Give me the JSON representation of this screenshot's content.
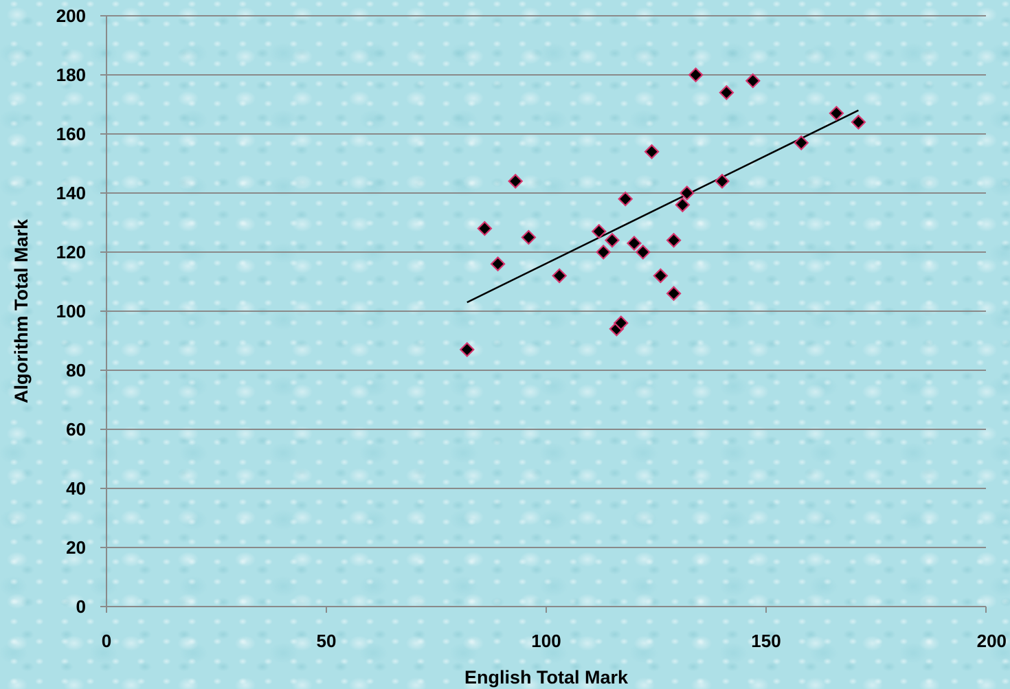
{
  "chart_data": {
    "type": "scatter",
    "title": "",
    "xlabel": "English Total Mark",
    "ylabel": "Algorithm Total Mark",
    "xlim": [
      0,
      200
    ],
    "ylim": [
      0,
      200
    ],
    "x_ticks": [
      "0",
      "50",
      "100",
      "150",
      "200"
    ],
    "y_ticks": [
      "0",
      "20",
      "40",
      "60",
      "80",
      "100",
      "120",
      "140",
      "160",
      "180",
      "200"
    ],
    "grid": "horizontal",
    "legend": "none",
    "colors": {
      "marker_fill": "#000000",
      "marker_edge": "#d6336c",
      "trendline": "#000000",
      "gridline": "#8a8a8a",
      "background": "#aee0e7"
    },
    "series": [
      {
        "marker": "diamond",
        "points": [
          {
            "x": 82,
            "y": 87
          },
          {
            "x": 86,
            "y": 128
          },
          {
            "x": 89,
            "y": 116
          },
          {
            "x": 93,
            "y": 144
          },
          {
            "x": 96,
            "y": 125
          },
          {
            "x": 103,
            "y": 112
          },
          {
            "x": 112,
            "y": 127
          },
          {
            "x": 113,
            "y": 120
          },
          {
            "x": 115,
            "y": 124
          },
          {
            "x": 116,
            "y": 94
          },
          {
            "x": 117,
            "y": 96
          },
          {
            "x": 118,
            "y": 138
          },
          {
            "x": 120,
            "y": 123
          },
          {
            "x": 122,
            "y": 120
          },
          {
            "x": 124,
            "y": 154
          },
          {
            "x": 126,
            "y": 112
          },
          {
            "x": 129,
            "y": 106
          },
          {
            "x": 129,
            "y": 124
          },
          {
            "x": 131,
            "y": 136
          },
          {
            "x": 132,
            "y": 140
          },
          {
            "x": 134,
            "y": 180
          },
          {
            "x": 140,
            "y": 144
          },
          {
            "x": 141,
            "y": 174
          },
          {
            "x": 147,
            "y": 178
          },
          {
            "x": 158,
            "y": 157
          },
          {
            "x": 166,
            "y": 167
          },
          {
            "x": 171,
            "y": 164
          }
        ]
      }
    ],
    "trendline": {
      "type": "linear",
      "x": [
        82,
        171
      ],
      "y": [
        103,
        168
      ]
    }
  }
}
